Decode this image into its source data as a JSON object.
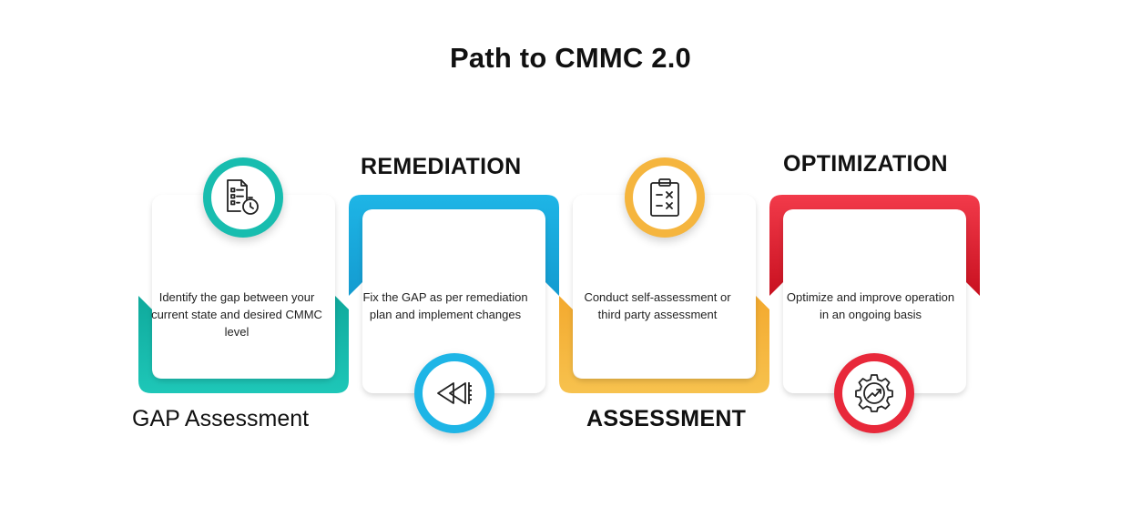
{
  "title": "Path to  CMMC 2.0",
  "colors": {
    "teal": "#1ABEB0",
    "blue": "#1EB5E6",
    "orange": "#F5B53E",
    "red": "#E8283A"
  },
  "stages": [
    {
      "label": "GAP Assessment",
      "description": "Identify the gap between your current state and desired CMMC level",
      "icon": "checklist-timer-icon"
    },
    {
      "label": "REMEDIATION",
      "description": "Fix the GAP as per remediation plan and implement changes",
      "icon": "rewind-arrows-icon"
    },
    {
      "label": "ASSESSMENT",
      "description": "Conduct self-assessment or third party assessment",
      "icon": "clipboard-icon"
    },
    {
      "label": "OPTIMIZATION",
      "description": "Optimize and improve operation in an ongoing basis",
      "icon": "gear-growth-icon"
    }
  ]
}
